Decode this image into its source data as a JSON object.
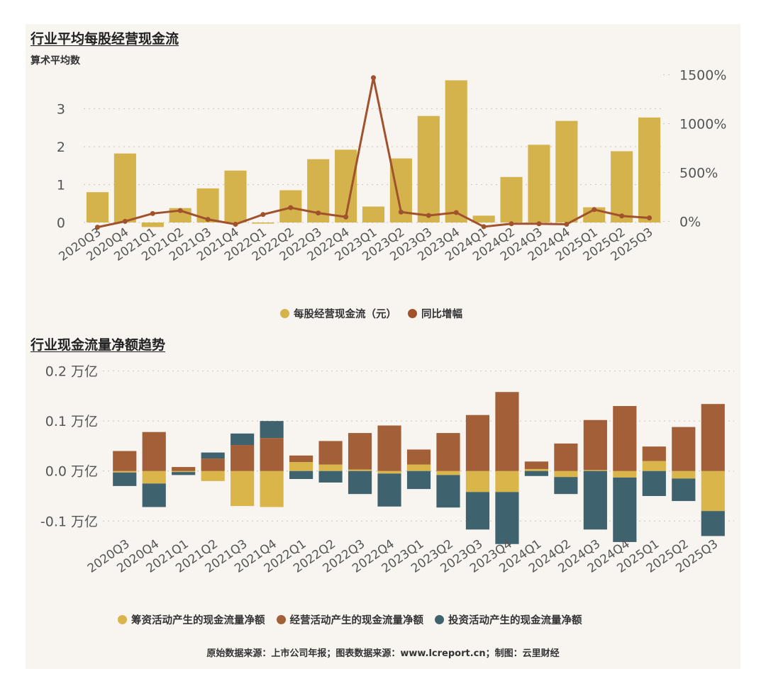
{
  "colors": {
    "bar_gold": "#d4b24c",
    "line_brown": "#a0522d",
    "financing": "#d9b54a",
    "operating": "#a35f37",
    "investing": "#3e636e",
    "grid": "#c8c4bd",
    "axis_text": "#555555"
  },
  "source": "原始数据来源：上市公司年报；图表数据来源：www.lcreport.cn；制图：云里财经",
  "chart_data": [
    {
      "type": "bar+line",
      "title": "行业平均每股经营现金流",
      "subtitle": "算术平均数",
      "categories": [
        "2020Q3",
        "2020Q4",
        "2021Q1",
        "2021Q2",
        "2021Q3",
        "2021Q4",
        "2022Q1",
        "2022Q2",
        "2022Q3",
        "2022Q4",
        "2023Q1",
        "2023Q2",
        "2023Q3",
        "2023Q4",
        "2024Q1",
        "2024Q2",
        "2024Q3",
        "2024Q4",
        "2025Q1",
        "2025Q2",
        "2025Q3"
      ],
      "series": [
        {
          "name": "每股经营现金流（元）",
          "type": "bar",
          "axis": "left",
          "values": [
            0.8,
            1.82,
            -0.12,
            0.38,
            0.9,
            1.37,
            -0.03,
            0.85,
            1.67,
            1.92,
            0.42,
            1.69,
            2.81,
            3.75,
            0.18,
            1.2,
            2.05,
            2.68,
            0.4,
            1.88,
            2.77
          ]
        },
        {
          "name": "同比增幅",
          "type": "line",
          "axis": "right",
          "values": [
            -60,
            0,
            80,
            110,
            20,
            -30,
            70,
            140,
            85,
            45,
            1470,
            95,
            60,
            90,
            -55,
            -25,
            -25,
            -30,
            120,
            55,
            35
          ]
        }
      ],
      "left_axis": {
        "ylim": [
          -0.15,
          4.0
        ],
        "ticks": [
          0,
          1,
          2,
          3
        ],
        "tick_labels": [
          "0",
          "1",
          "2",
          "3"
        ]
      },
      "right_axis": {
        "ylim": [
          -70,
          1540
        ],
        "ticks": [
          0,
          500,
          1000,
          1500
        ],
        "tick_labels": [
          "0%",
          "500%",
          "1000%",
          "1500%"
        ]
      },
      "legend": [
        "每股经营现金流（元）",
        "同比增幅"
      ],
      "legend_position": "bottom"
    },
    {
      "type": "stacked_bar",
      "title": "行业现金流量净额趋势",
      "categories": [
        "2020Q3",
        "2020Q4",
        "2021Q1",
        "2021Q2",
        "2021Q3",
        "2021Q4",
        "2022Q1",
        "2022Q2",
        "2022Q3",
        "2022Q4",
        "2023Q1",
        "2023Q2",
        "2023Q3",
        "2023Q4",
        "2024Q1",
        "2024Q2",
        "2024Q3",
        "2024Q4",
        "2025Q1",
        "2025Q2",
        "2025Q3"
      ],
      "series": [
        {
          "name": "筹资活动产生的现金流量净额",
          "values": [
            -0.003,
            -0.025,
            -0.002,
            -0.02,
            -0.07,
            -0.072,
            0.018,
            0.013,
            0.003,
            -0.005,
            0.013,
            -0.008,
            -0.042,
            -0.042,
            0.004,
            -0.012,
            0.002,
            -0.013,
            0.02,
            -0.015,
            -0.08
          ]
        },
        {
          "name": "经营活动产生的现金流量净额",
          "values": [
            0.04,
            0.078,
            0.008,
            0.025,
            0.052,
            0.066,
            0.013,
            0.047,
            0.073,
            0.091,
            0.03,
            0.076,
            0.112,
            0.158,
            0.015,
            0.055,
            0.1,
            0.13,
            0.029,
            0.088,
            0.134
          ]
        },
        {
          "name": "投资活动产生的现金流量净额",
          "values": [
            -0.027,
            -0.047,
            -0.006,
            0.012,
            0.023,
            0.034,
            -0.016,
            -0.023,
            -0.046,
            -0.066,
            -0.036,
            -0.065,
            -0.075,
            -0.104,
            -0.01,
            -0.034,
            -0.117,
            -0.129,
            -0.05,
            -0.045,
            -0.05
          ]
        }
      ],
      "ylim": [
        -0.135,
        0.215
      ],
      "ticks": [
        -0.1,
        0.0,
        0.1,
        0.2
      ],
      "tick_labels": [
        "-0.1 万亿",
        "0.0 万亿",
        "0.1 万亿",
        "0.2 万亿"
      ],
      "legend": [
        "筹资活动产生的现金流量净额",
        "经营活动产生的现金流量净额",
        "投资活动产生的现金流量净额"
      ],
      "legend_position": "bottom"
    }
  ]
}
